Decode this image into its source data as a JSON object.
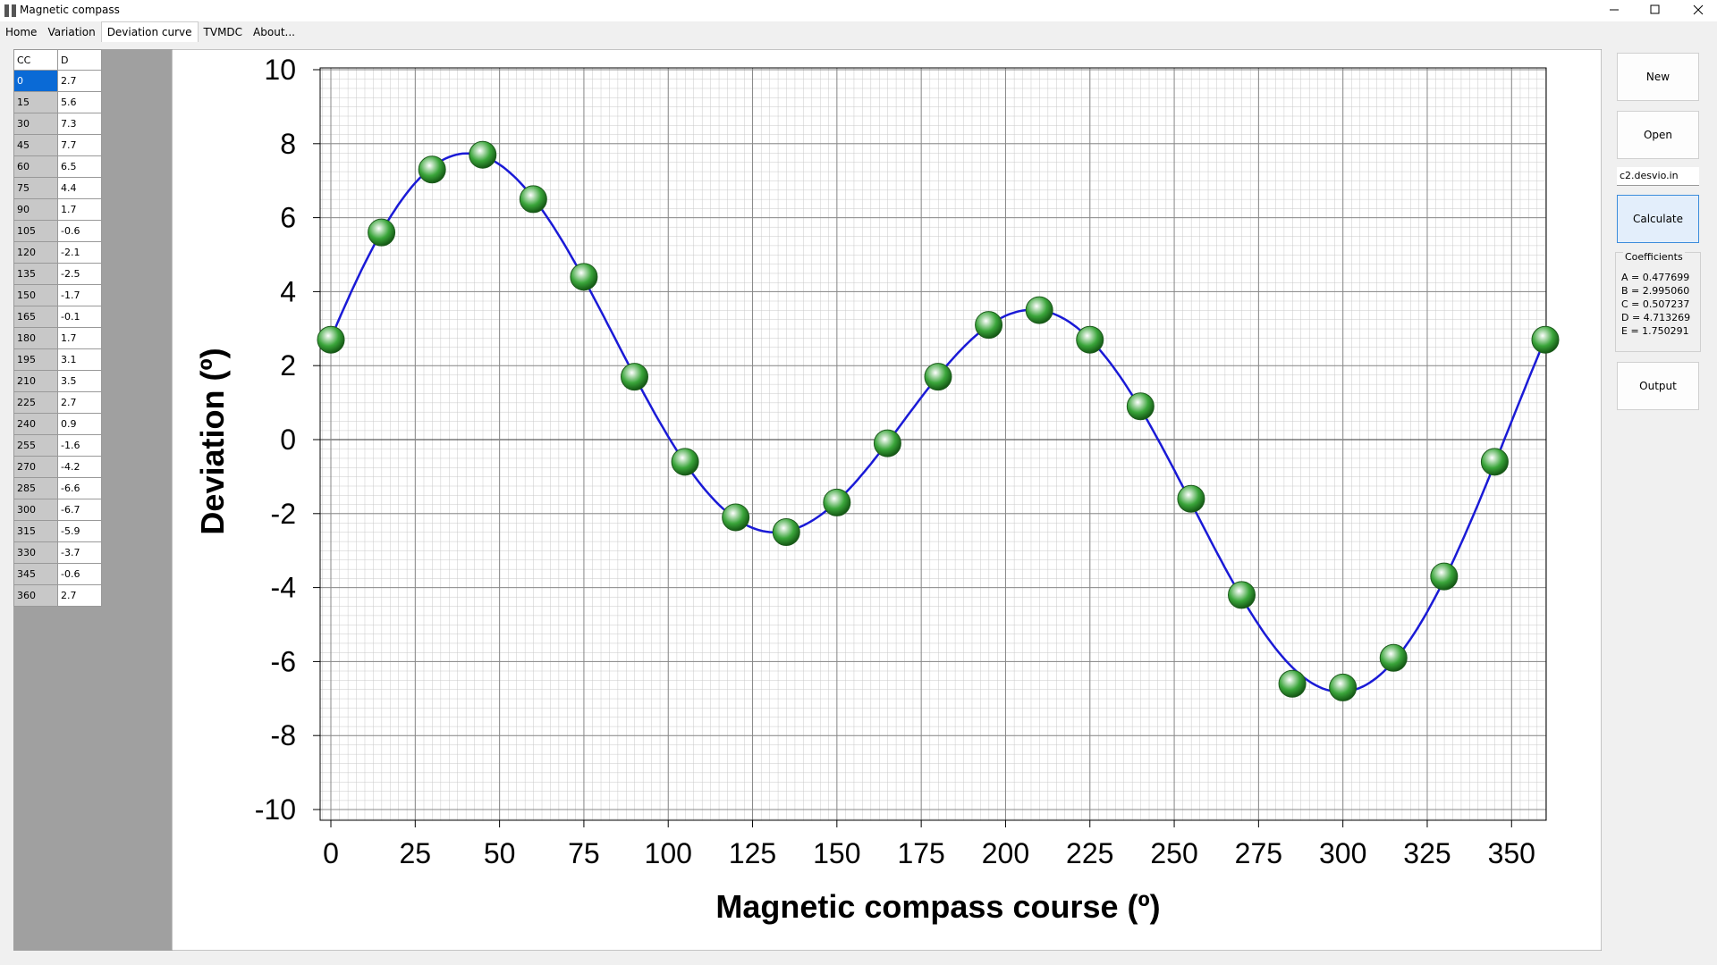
{
  "window": {
    "title": "Magnetic compass"
  },
  "tabs": [
    "Home",
    "Variation",
    "Deviation curve",
    "TVMDC",
    "About..."
  ],
  "table": {
    "columns": [
      "CC",
      "D"
    ]
  },
  "chart_data": {
    "type": "scatter",
    "ylabel": "Deviation (º)",
    "xlabel": "Magnetic compass course (º)",
    "x": [
      0,
      15,
      30,
      45,
      60,
      75,
      90,
      105,
      120,
      135,
      150,
      165,
      180,
      195,
      210,
      225,
      240,
      255,
      270,
      285,
      300,
      315,
      330,
      345,
      360
    ],
    "values": [
      2.7,
      5.6,
      7.3,
      7.7,
      6.5,
      4.4,
      1.7,
      -0.6,
      -2.1,
      -2.5,
      -1.7,
      -0.1,
      1.7,
      3.1,
      3.5,
      2.7,
      0.9,
      -1.6,
      -4.2,
      -6.6,
      -6.7,
      -5.9,
      -3.7,
      -0.6,
      2.7
    ],
    "xlim": [
      0,
      360
    ],
    "ylim": [
      -10,
      10
    ],
    "xticks": [
      0,
      25,
      50,
      75,
      100,
      125,
      150,
      175,
      200,
      225,
      250,
      275,
      300,
      325,
      350
    ],
    "yticks": [
      -10,
      -8,
      -6,
      -4,
      -2,
      0,
      2,
      4,
      6,
      8,
      10
    ],
    "grid": true,
    "color": "#3aa53a",
    "fit_color": "#1a1ad6"
  },
  "buttons": {
    "new": "New",
    "open": "Open",
    "calculate": "Calculate",
    "output": "Output"
  },
  "file": "c2.desvio.in",
  "coefficients": {
    "title": "Coefficients",
    "items": [
      {
        "label": "A = 0.477699",
        "value": 0.477699
      },
      {
        "label": "B = 2.995060",
        "value": 2.99506
      },
      {
        "label": "C = 0.507237",
        "value": 0.507237
      },
      {
        "label": "D = 4.713269",
        "value": 4.713269
      },
      {
        "label": "E = 1.750291",
        "value": 1.750291
      }
    ]
  }
}
